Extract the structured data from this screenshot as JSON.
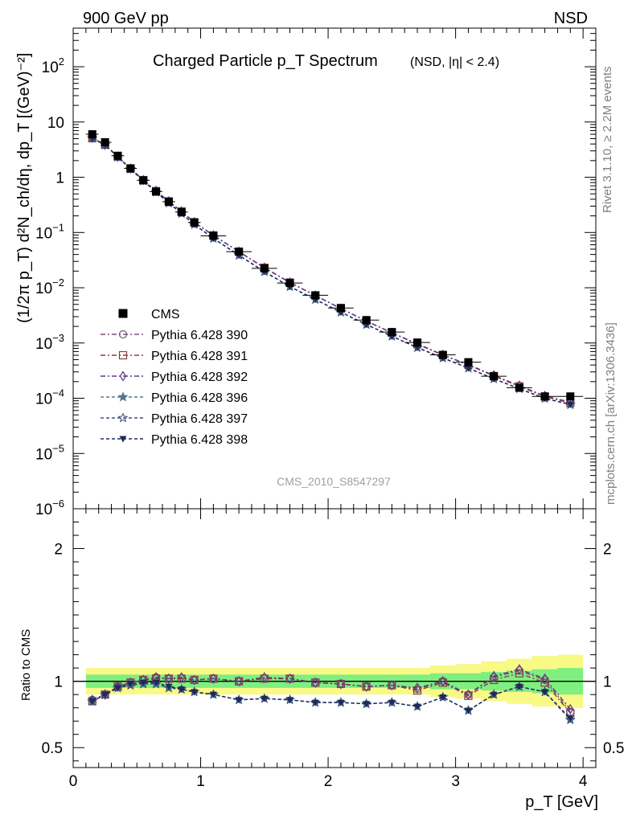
{
  "header": {
    "left": "900 GeV pp",
    "right": "NSD"
  },
  "side": {
    "rivet": "Rivet 3.1.10, ≥ 2.2M events",
    "mcplots": "mcplots.cern.ch [arXiv:1306.3436]"
  },
  "chart_data": {
    "type": "line",
    "title": "Charged Particle p_T Spectrum",
    "subtitle": "(NSD, |η| < 2.4)",
    "watermark": "CMS_2010_S8547297",
    "xlabel": "p_T [GeV]",
    "ylabel": "(1/2π p_T) d²N_ch/dη, dp_T [(GeV)⁻²]",
    "ratio_ylabel": "Ratio to CMS",
    "xlim": [
      0,
      4.1
    ],
    "ylim": [
      1e-06,
      500
    ],
    "yscale": "log",
    "ratio_ylim": [
      0.35,
      2.3
    ],
    "x_ticks": [
      "0",
      "1",
      "2",
      "3",
      "4"
    ],
    "y_ticks": [
      "10⁻⁶",
      "10⁻⁵",
      "10⁻⁴",
      "10⁻³",
      "10⁻²",
      "10⁻¹",
      "1",
      "10",
      "10²"
    ],
    "ratio_ticks": [
      "0.5",
      "1",
      "2"
    ],
    "legend_position": "bottom-left",
    "x": [
      0.15,
      0.25,
      0.35,
      0.45,
      0.55,
      0.65,
      0.75,
      0.85,
      0.95,
      1.1,
      1.3,
      1.5,
      1.7,
      1.9,
      2.1,
      2.3,
      2.5,
      2.7,
      2.9,
      3.1,
      3.3,
      3.5,
      3.7,
      3.9
    ],
    "x_err": [
      0.05,
      0.05,
      0.05,
      0.05,
      0.05,
      0.05,
      0.05,
      0.05,
      0.05,
      0.1,
      0.1,
      0.1,
      0.1,
      0.1,
      0.1,
      0.1,
      0.1,
      0.1,
      0.1,
      0.1,
      0.1,
      0.1,
      0.1,
      0.1
    ],
    "cms": [
      6.0,
      4.3,
      2.45,
      1.45,
      0.88,
      0.55,
      0.36,
      0.235,
      0.152,
      0.087,
      0.045,
      0.0225,
      0.0122,
      0.0073,
      0.0043,
      0.0026,
      0.00158,
      0.00102,
      0.00061,
      0.00045,
      0.00025,
      0.000155,
      0.000108,
      0.000108
    ],
    "band_inner": [
      0.05,
      0.05,
      0.05,
      0.05,
      0.05,
      0.05,
      0.05,
      0.05,
      0.05,
      0.05,
      0.05,
      0.05,
      0.05,
      0.05,
      0.05,
      0.05,
      0.05,
      0.05,
      0.06,
      0.06,
      0.07,
      0.08,
      0.09,
      0.1
    ],
    "band_outer": [
      0.1,
      0.1,
      0.1,
      0.1,
      0.1,
      0.1,
      0.1,
      0.1,
      0.1,
      0.1,
      0.1,
      0.1,
      0.1,
      0.1,
      0.1,
      0.1,
      0.1,
      0.1,
      0.12,
      0.13,
      0.15,
      0.17,
      0.19,
      0.2
    ],
    "series": [
      {
        "name": "CMS",
        "marker": "square",
        "color": "#000000"
      },
      {
        "name": "Pythia 6.428 390",
        "marker": "circle",
        "color": "#7a4e7e",
        "dash": "6,3,2,3",
        "ratio": [
          0.86,
          0.9,
          0.96,
          0.99,
          1.01,
          1.03,
          1.02,
          1.02,
          1.01,
          1.02,
          1.0,
          1.02,
          1.02,
          0.99,
          0.98,
          0.96,
          0.97,
          0.94,
          1.0,
          0.9,
          1.03,
          1.08,
          1.01,
          0.77
        ]
      },
      {
        "name": "Pythia 6.428 391",
        "marker": "square-open",
        "color": "#8a4040",
        "dash": "6,3,2,3",
        "ratio": [
          0.85,
          0.9,
          0.96,
          0.99,
          1.01,
          1.02,
          1.02,
          1.02,
          1.01,
          1.02,
          1.0,
          1.02,
          1.02,
          0.99,
          0.98,
          0.96,
          0.97,
          0.93,
          0.99,
          0.89,
          1.01,
          1.06,
          0.99,
          0.76
        ]
      },
      {
        "name": "Pythia 6.428 392",
        "marker": "diamond",
        "color": "#5a3a8a",
        "dash": "6,3,2,3",
        "ratio": [
          0.86,
          0.9,
          0.96,
          0.99,
          1.01,
          1.03,
          1.02,
          1.03,
          1.01,
          1.02,
          1.0,
          1.03,
          1.02,
          0.99,
          0.98,
          0.96,
          0.97,
          0.95,
          1.0,
          0.9,
          1.04,
          1.09,
          1.02,
          0.79
        ]
      },
      {
        "name": "Pythia 6.428 396",
        "marker": "star",
        "color": "#4f7a8a",
        "dash": "4,3",
        "ratio": [
          0.85,
          0.9,
          0.95,
          0.97,
          0.98,
          0.98,
          0.95,
          0.94,
          0.92,
          0.9,
          0.86,
          0.87,
          0.86,
          0.84,
          0.84,
          0.83,
          0.84,
          0.81,
          0.88,
          0.78,
          0.9,
          0.96,
          0.92,
          0.71
        ]
      },
      {
        "name": "Pythia 6.428 397",
        "marker": "star-open",
        "color": "#3a4f80",
        "dash": "4,3",
        "ratio": [
          0.85,
          0.9,
          0.95,
          0.97,
          0.98,
          0.98,
          0.95,
          0.94,
          0.92,
          0.9,
          0.86,
          0.87,
          0.86,
          0.84,
          0.84,
          0.83,
          0.84,
          0.81,
          0.88,
          0.78,
          0.9,
          0.96,
          0.92,
          0.71
        ]
      },
      {
        "name": "Pythia 6.428 398",
        "marker": "triangle-down",
        "color": "#1e2a55",
        "dash": "4,3",
        "ratio": [
          0.85,
          0.9,
          0.95,
          0.98,
          0.99,
          0.99,
          0.96,
          0.94,
          0.92,
          0.9,
          0.86,
          0.87,
          0.86,
          0.84,
          0.84,
          0.83,
          0.84,
          0.81,
          0.88,
          0.78,
          0.9,
          0.96,
          0.92,
          0.72
        ]
      }
    ],
    "colors": {
      "band_inner": "#7fef7f",
      "band_outer": "#f9f986"
    }
  }
}
